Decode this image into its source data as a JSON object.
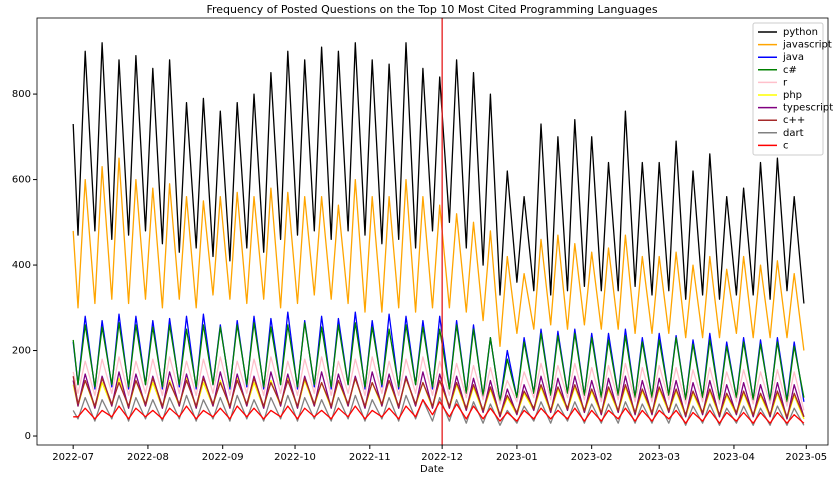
{
  "chart_data": {
    "type": "line",
    "title": "Frequency of Posted Questions on the Top 10 Most Cited Programming Languages",
    "xlabel": "Date",
    "x": [
      0,
      2,
      5,
      9,
      12,
      16,
      19,
      23,
      26,
      30,
      33,
      37,
      40,
      44,
      47,
      51,
      54,
      58,
      61,
      65,
      68,
      72,
      75,
      79,
      82,
      86,
      89,
      93,
      96,
      100,
      103,
      107,
      110,
      114,
      117,
      121,
      124,
      128,
      131,
      135,
      138,
      142,
      145,
      149,
      152,
      156,
      159,
      163,
      166,
      170,
      173,
      177,
      180,
      184,
      187,
      191,
      194,
      198,
      201,
      205,
      208,
      212,
      215,
      219,
      222,
      226,
      229,
      233,
      236,
      240,
      243,
      247,
      250,
      254,
      257,
      261,
      264,
      268,
      271,
      275,
      278,
      282,
      285,
      289,
      292,
      296,
      299,
      303
    ],
    "xlim": [
      -15,
      313
    ],
    "xticks": [
      {
        "value": 0,
        "label": "2022-07"
      },
      {
        "value": 31,
        "label": "2022-08"
      },
      {
        "value": 62,
        "label": "2022-09"
      },
      {
        "value": 92,
        "label": "2022-10"
      },
      {
        "value": 123,
        "label": "2022-11"
      },
      {
        "value": 153,
        "label": "2022-12"
      },
      {
        "value": 184,
        "label": "2023-01"
      },
      {
        "value": 215,
        "label": "2023-02"
      },
      {
        "value": 243,
        "label": "2023-03"
      },
      {
        "value": 274,
        "label": "2023-04"
      },
      {
        "value": 304,
        "label": "2023-05"
      }
    ],
    "ylim": [
      -21,
      978
    ],
    "yticks": [
      0,
      200,
      400,
      600,
      800
    ],
    "vline": {
      "x": 153,
      "color": "#e41a1c"
    },
    "legend": "upper right",
    "series": [
      {
        "name": "python",
        "color": "#000000",
        "values": [
          730,
          470,
          900,
          480,
          920,
          460,
          880,
          470,
          890,
          480,
          860,
          450,
          880,
          430,
          780,
          440,
          790,
          420,
          760,
          410,
          780,
          440,
          800,
          430,
          850,
          460,
          900,
          470,
          880,
          480,
          910,
          460,
          900,
          480,
          920,
          470,
          880,
          450,
          870,
          460,
          920,
          440,
          860,
          480,
          840,
          500,
          880,
          440,
          850,
          400,
          800,
          330,
          620,
          360,
          560,
          340,
          730,
          330,
          700,
          340,
          740,
          350,
          700,
          340,
          640,
          340,
          760,
          350,
          640,
          330,
          640,
          340,
          690,
          320,
          620,
          330,
          660,
          320,
          560,
          330,
          580,
          330,
          640,
          320,
          650,
          340,
          560,
          310
        ]
      },
      {
        "name": "javascript",
        "color": "#ffa500",
        "values": [
          480,
          300,
          600,
          310,
          630,
          320,
          650,
          310,
          600,
          320,
          580,
          300,
          590,
          320,
          560,
          300,
          550,
          330,
          560,
          320,
          570,
          310,
          560,
          320,
          580,
          300,
          570,
          310,
          560,
          330,
          560,
          320,
          540,
          310,
          600,
          290,
          560,
          290,
          560,
          300,
          600,
          290,
          560,
          300,
          540,
          300,
          520,
          290,
          500,
          270,
          480,
          210,
          420,
          240,
          380,
          250,
          460,
          260,
          470,
          250,
          450,
          260,
          430,
          250,
          440,
          250,
          470,
          240,
          420,
          240,
          420,
          240,
          430,
          230,
          400,
          230,
          420,
          230,
          390,
          240,
          420,
          230,
          400,
          230,
          410,
          230,
          380,
          200
        ]
      },
      {
        "name": "java",
        "color": "#0000ff",
        "values": [
          220,
          120,
          280,
          110,
          270,
          115,
          285,
          110,
          280,
          120,
          270,
          110,
          275,
          115,
          280,
          110,
          285,
          120,
          260,
          110,
          270,
          115,
          280,
          110,
          275,
          120,
          290,
          110,
          270,
          115,
          280,
          110,
          275,
          120,
          290,
          110,
          270,
          115,
          285,
          110,
          280,
          120,
          270,
          110,
          280,
          110,
          270,
          100,
          260,
          90,
          230,
          80,
          200,
          90,
          230,
          100,
          250,
          95,
          245,
          100,
          250,
          95,
          240,
          90,
          240,
          95,
          250,
          90,
          230,
          90,
          240,
          95,
          235,
          85,
          225,
          90,
          240,
          85,
          220,
          90,
          230,
          85,
          225,
          80,
          230,
          85,
          220,
          80
        ]
      },
      {
        "name": "c#",
        "color": "#008000",
        "values": [
          225,
          120,
          260,
          115,
          255,
          120,
          265,
          115,
          260,
          120,
          255,
          115,
          260,
          120,
          250,
          115,
          260,
          120,
          255,
          115,
          260,
          120,
          265,
          115,
          255,
          120,
          260,
          115,
          265,
          120,
          255,
          115,
          260,
          120,
          265,
          115,
          255,
          120,
          250,
          115,
          260,
          120,
          255,
          115,
          250,
          110,
          260,
          100,
          250,
          95,
          230,
          80,
          180,
          90,
          220,
          100,
          240,
          95,
          235,
          100,
          240,
          95,
          230,
          90,
          225,
          95,
          235,
          90,
          220,
          90,
          225,
          95,
          230,
          85,
          215,
          90,
          225,
          85,
          210,
          90,
          220,
          85,
          215,
          85,
          220,
          80,
          210,
          90
        ]
      },
      {
        "name": "r",
        "color": "#ffc0cb",
        "values": [
          150,
          100,
          175,
          95,
          180,
          100,
          185,
          95,
          175,
          100,
          180,
          95,
          185,
          100,
          175,
          95,
          180,
          100,
          185,
          95,
          175,
          100,
          180,
          95,
          185,
          100,
          175,
          95,
          180,
          100,
          185,
          95,
          175,
          100,
          180,
          95,
          185,
          100,
          175,
          95,
          180,
          100,
          185,
          95,
          175,
          95,
          170,
          90,
          165,
          85,
          160,
          75,
          130,
          80,
          150,
          90,
          170,
          85,
          165,
          90,
          170,
          85,
          160,
          80,
          165,
          85,
          170,
          80,
          160,
          80,
          165,
          85,
          160,
          75,
          155,
          80,
          160,
          75,
          150,
          80,
          155,
          75,
          150,
          75,
          155,
          70,
          150,
          60
        ]
      },
      {
        "name": "php",
        "color": "#ffff00",
        "values": [
          120,
          70,
          130,
          65,
          125,
          70,
          135,
          65,
          130,
          70,
          125,
          65,
          130,
          70,
          135,
          65,
          125,
          70,
          130,
          65,
          135,
          70,
          125,
          65,
          130,
          70,
          135,
          65,
          130,
          70,
          125,
          65,
          130,
          70,
          135,
          65,
          125,
          70,
          130,
          65,
          135,
          70,
          125,
          65,
          130,
          65,
          120,
          60,
          115,
          55,
          110,
          45,
          90,
          50,
          100,
          60,
          115,
          55,
          110,
          60,
          115,
          55,
          105,
          50,
          110,
          55,
          115,
          50,
          105,
          50,
          110,
          55,
          105,
          45,
          100,
          50,
          105,
          45,
          95,
          50,
          100,
          45,
          95,
          45,
          100,
          40,
          95,
          40
        ]
      },
      {
        "name": "typescript",
        "color": "#800080",
        "values": [
          130,
          70,
          145,
          65,
          140,
          70,
          150,
          65,
          145,
          70,
          140,
          65,
          150,
          70,
          145,
          65,
          140,
          70,
          150,
          65,
          145,
          70,
          140,
          65,
          150,
          70,
          145,
          65,
          140,
          70,
          150,
          65,
          145,
          70,
          140,
          65,
          150,
          70,
          145,
          65,
          140,
          70,
          150,
          65,
          145,
          65,
          140,
          60,
          135,
          55,
          130,
          45,
          110,
          50,
          120,
          60,
          140,
          55,
          135,
          60,
          140,
          55,
          130,
          50,
          135,
          55,
          140,
          50,
          130,
          50,
          135,
          55,
          130,
          45,
          125,
          50,
          130,
          45,
          120,
          50,
          125,
          45,
          120,
          45,
          125,
          40,
          120,
          45
        ]
      },
      {
        "name": "c++",
        "color": "#a52a2a",
        "values": [
          140,
          75,
          130,
          70,
          135,
          75,
          125,
          70,
          130,
          75,
          135,
          70,
          125,
          75,
          130,
          70,
          135,
          75,
          125,
          70,
          130,
          75,
          135,
          70,
          125,
          75,
          130,
          70,
          135,
          75,
          125,
          70,
          130,
          75,
          135,
          70,
          125,
          75,
          130,
          70,
          135,
          75,
          125,
          70,
          130,
          70,
          125,
          65,
          120,
          60,
          115,
          50,
          95,
          55,
          105,
          65,
          120,
          60,
          115,
          65,
          120,
          60,
          110,
          55,
          115,
          60,
          120,
          55,
          110,
          55,
          115,
          60,
          110,
          50,
          105,
          55,
          110,
          50,
          100,
          55,
          105,
          50,
          100,
          50,
          105,
          45,
          100,
          45
        ]
      },
      {
        "name": "dart",
        "color": "#808080",
        "values": [
          60,
          40,
          90,
          35,
          85,
          40,
          95,
          35,
          90,
          40,
          85,
          35,
          90,
          40,
          95,
          35,
          85,
          40,
          90,
          35,
          95,
          40,
          85,
          35,
          90,
          40,
          95,
          35,
          90,
          40,
          85,
          35,
          90,
          40,
          95,
          35,
          85,
          40,
          90,
          35,
          95,
          40,
          85,
          35,
          90,
          35,
          85,
          30,
          80,
          30,
          75,
          25,
          60,
          30,
          70,
          35,
          80,
          30,
          75,
          35,
          80,
          30,
          75,
          30,
          75,
          30,
          80,
          30,
          75,
          30,
          75,
          30,
          75,
          25,
          70,
          30,
          75,
          25,
          65,
          30,
          70,
          25,
          65,
          25,
          70,
          25,
          65,
          25
        ]
      },
      {
        "name": "c",
        "color": "#ff0000",
        "values": [
          45,
          45,
          65,
          40,
          60,
          45,
          70,
          40,
          65,
          45,
          60,
          40,
          65,
          45,
          70,
          40,
          60,
          45,
          65,
          40,
          70,
          45,
          65,
          40,
          60,
          45,
          70,
          40,
          65,
          45,
          60,
          40,
          65,
          45,
          70,
          40,
          60,
          45,
          65,
          40,
          70,
          45,
          85,
          50,
          80,
          45,
          75,
          40,
          70,
          40,
          65,
          35,
          55,
          35,
          60,
          40,
          65,
          40,
          60,
          40,
          65,
          35,
          60,
          35,
          60,
          40,
          65,
          35,
          60,
          35,
          60,
          40,
          60,
          30,
          55,
          35,
          60,
          30,
          55,
          35,
          55,
          30,
          55,
          30,
          55,
          30,
          50,
          30
        ]
      }
    ]
  }
}
